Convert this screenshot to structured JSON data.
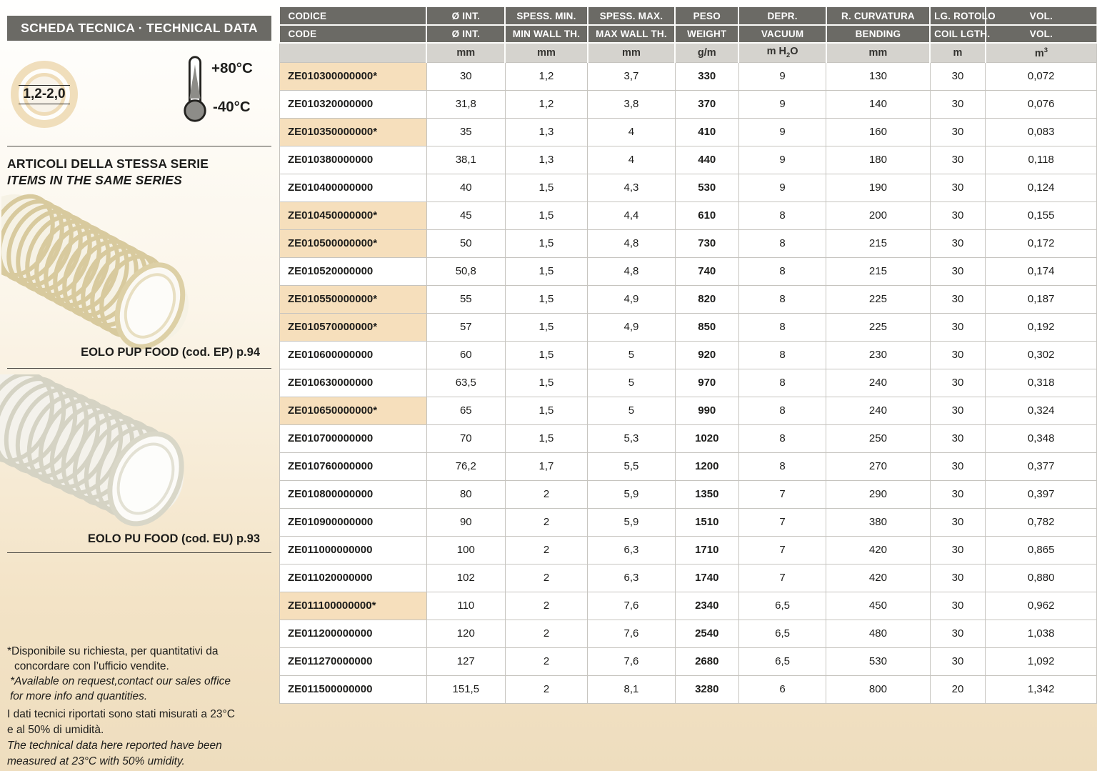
{
  "sidebar": {
    "header": "SCHEDA TECNICA · TECHNICAL DATA",
    "wall_thickness_range": "1,2-2,0",
    "temperature_max": "+80°C",
    "temperature_min": "-40°C",
    "series_title_it": "ARTICOLI DELLA STESSA SERIE",
    "series_title_en": "ITEMS IN THE SAME SERIES",
    "related_items": [
      {
        "caption": "EOLO PUP FOOD (cod. EP) p.94"
      },
      {
        "caption": "EOLO PU FOOD (cod. EU) p.93"
      }
    ],
    "icons": {
      "wall_thickness": "hose-cross-section-rings-icon",
      "temperature": "thermometer-icon"
    },
    "footnotes": {
      "note_it_line1": "*Disponibile su richiesta, per quantitativi da",
      "note_it_line2": "concordare con l’ufficio vendite.",
      "note_en_line1": "*Available on request,contact our sales office",
      "note_en_line2": "for more info and quantities.",
      "tech_it_line1": "I dati tecnici riportati sono stati misurati a 23°C",
      "tech_it_line2": "e al 50% di umidità.",
      "tech_en_line1": "The technical data here reported have been",
      "tech_en_line2": "measured at 23°C with 50% umidity."
    }
  },
  "table": {
    "columns": [
      {
        "id": "code",
        "label_it": "CODICE",
        "label_en": "CODE",
        "unit": "",
        "width": 18.0
      },
      {
        "id": "diam",
        "label_it": "Ø INT.",
        "label_en": "Ø INT.",
        "unit": "mm",
        "width": 9.6
      },
      {
        "id": "minwall",
        "label_it": "SPESS. MIN.",
        "label_en": "MIN WALL TH.",
        "unit": "mm",
        "width": 10.1
      },
      {
        "id": "maxwall",
        "label_it": "SPESS. MAX.",
        "label_en": "MAX WALL TH.",
        "unit": "mm",
        "width": 10.7
      },
      {
        "id": "weight",
        "label_it": "PESO",
        "label_en": "WEIGHT",
        "unit": "g/m",
        "width": 7.8
      },
      {
        "id": "vacuum",
        "label_it": "DEPR.",
        "label_en": "VACUUM",
        "unit": "m H2O",
        "width": 10.7
      },
      {
        "id": "bending",
        "label_it": "R. CURVATURA",
        "label_en": "BENDING",
        "unit": "mm",
        "width": 12.7
      },
      {
        "id": "coil",
        "label_it": "LG. ROTOLO",
        "label_en": "COIL LGTH.",
        "unit": "m",
        "width": 6.8
      },
      {
        "id": "vol",
        "label_it": "VOL.",
        "label_en": "VOL.",
        "unit": "m3",
        "width": 13.6
      }
    ],
    "rows": [
      {
        "code": "ZE010300000000*",
        "highlight": true,
        "values": [
          "30",
          "1,2",
          "3,7",
          "330",
          "9",
          "130",
          "30",
          "0,072"
        ]
      },
      {
        "code": "ZE010320000000",
        "highlight": false,
        "values": [
          "31,8",
          "1,2",
          "3,8",
          "370",
          "9",
          "140",
          "30",
          "0,076"
        ]
      },
      {
        "code": "ZE010350000000*",
        "highlight": true,
        "values": [
          "35",
          "1,3",
          "4",
          "410",
          "9",
          "160",
          "30",
          "0,083"
        ]
      },
      {
        "code": "ZE010380000000",
        "highlight": false,
        "values": [
          "38,1",
          "1,3",
          "4",
          "440",
          "9",
          "180",
          "30",
          "0,118"
        ]
      },
      {
        "code": "ZE010400000000",
        "highlight": false,
        "values": [
          "40",
          "1,5",
          "4,3",
          "530",
          "9",
          "190",
          "30",
          "0,124"
        ]
      },
      {
        "code": "ZE010450000000*",
        "highlight": true,
        "values": [
          "45",
          "1,5",
          "4,4",
          "610",
          "8",
          "200",
          "30",
          "0,155"
        ]
      },
      {
        "code": "ZE010500000000*",
        "highlight": true,
        "values": [
          "50",
          "1,5",
          "4,8",
          "730",
          "8",
          "215",
          "30",
          "0,172"
        ]
      },
      {
        "code": "ZE010520000000",
        "highlight": false,
        "values": [
          "50,8",
          "1,5",
          "4,8",
          "740",
          "8",
          "215",
          "30",
          "0,174"
        ]
      },
      {
        "code": "ZE010550000000*",
        "highlight": true,
        "values": [
          "55",
          "1,5",
          "4,9",
          "820",
          "8",
          "225",
          "30",
          "0,187"
        ]
      },
      {
        "code": "ZE010570000000*",
        "highlight": true,
        "values": [
          "57",
          "1,5",
          "4,9",
          "850",
          "8",
          "225",
          "30",
          "0,192"
        ]
      },
      {
        "code": "ZE010600000000",
        "highlight": false,
        "values": [
          "60",
          "1,5",
          "5",
          "920",
          "8",
          "230",
          "30",
          "0,302"
        ]
      },
      {
        "code": "ZE010630000000",
        "highlight": false,
        "values": [
          "63,5",
          "1,5",
          "5",
          "970",
          "8",
          "240",
          "30",
          "0,318"
        ]
      },
      {
        "code": "ZE010650000000*",
        "highlight": true,
        "values": [
          "65",
          "1,5",
          "5",
          "990",
          "8",
          "240",
          "30",
          "0,324"
        ]
      },
      {
        "code": "ZE010700000000",
        "highlight": false,
        "values": [
          "70",
          "1,5",
          "5,3",
          "1020",
          "8",
          "250",
          "30",
          "0,348"
        ]
      },
      {
        "code": "ZE010760000000",
        "highlight": false,
        "values": [
          "76,2",
          "1,7",
          "5,5",
          "1200",
          "8",
          "270",
          "30",
          "0,377"
        ]
      },
      {
        "code": "ZE010800000000",
        "highlight": false,
        "values": [
          "80",
          "2",
          "5,9",
          "1350",
          "7",
          "290",
          "30",
          "0,397"
        ]
      },
      {
        "code": "ZE010900000000",
        "highlight": false,
        "values": [
          "90",
          "2",
          "5,9",
          "1510",
          "7",
          "380",
          "30",
          "0,782"
        ]
      },
      {
        "code": "ZE011000000000",
        "highlight": false,
        "values": [
          "100",
          "2",
          "6,3",
          "1710",
          "7",
          "420",
          "30",
          "0,865"
        ]
      },
      {
        "code": "ZE011020000000",
        "highlight": false,
        "values": [
          "102",
          "2",
          "6,3",
          "1740",
          "7",
          "420",
          "30",
          "0,880"
        ]
      },
      {
        "code": "ZE011100000000*",
        "highlight": true,
        "values": [
          "110",
          "2",
          "7,6",
          "2340",
          "6,5",
          "450",
          "30",
          "0,962"
        ]
      },
      {
        "code": "ZE011200000000",
        "highlight": false,
        "values": [
          "120",
          "2",
          "7,6",
          "2540",
          "6,5",
          "480",
          "30",
          "1,038"
        ]
      },
      {
        "code": "ZE011270000000",
        "highlight": false,
        "values": [
          "127",
          "2",
          "7,6",
          "2680",
          "6,5",
          "530",
          "30",
          "1,092"
        ]
      },
      {
        "code": "ZE011500000000",
        "highlight": false,
        "values": [
          "151,5",
          "2",
          "8,1",
          "3280",
          "6",
          "800",
          "20",
          "1,342"
        ]
      }
    ]
  },
  "colors": {
    "header_bar": "#6b6a65",
    "units_row": "#d5d3ce",
    "row_highlight": "#f6dfbc",
    "table_border": "#c6c4bf",
    "background_bottom": "#eeddbe",
    "text": "#1d1d1b",
    "hose1_beige": "#d8ca9e",
    "hose2_white": "#d5d3c4"
  }
}
